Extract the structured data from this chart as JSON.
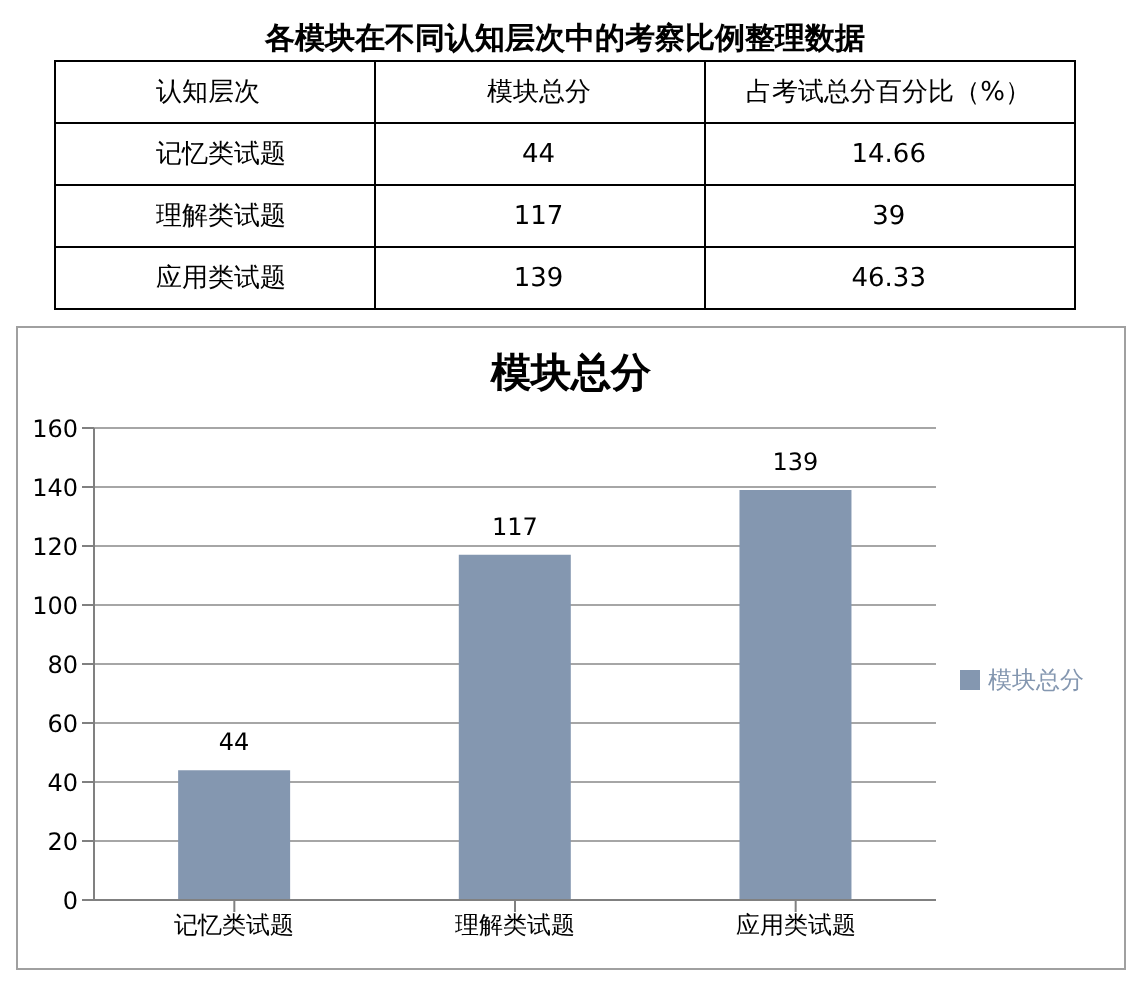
{
  "chart_data": [
    {
      "type": "other",
      "title": "各模块在不同认知层次中的考察比例整理数据",
      "annotations": [
        "认知层次",
        "模块总分",
        "占考试总分百分比（%）",
        "记忆类试题",
        "44",
        "14.66",
        "理解类试题",
        "117",
        "39",
        "应用类试题",
        "139",
        "46.33"
      ]
    },
    {
      "type": "bar",
      "title": "模块总分",
      "categories": [
        "记忆类试题",
        "理解类试题",
        "应用类试题"
      ],
      "series": [
        {
          "name": "模块总分",
          "color": "#8497b0",
          "values": [
            44,
            117,
            139
          ]
        }
      ],
      "ylim": [
        0,
        160
      ],
      "yticks": [
        0,
        20,
        40,
        60,
        80,
        100,
        120,
        140,
        160
      ],
      "grid": "y",
      "legend": "right",
      "data_labels": true
    }
  ]
}
